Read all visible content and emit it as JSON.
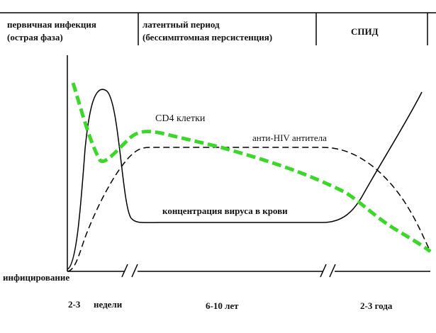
{
  "phases": {
    "primary": {
      "line1": "первичная инфекция",
      "line2": "(острая фаза)"
    },
    "latent": {
      "line1": "латентный период",
      "line2": "(бессимптомная персистенция)"
    },
    "aids": {
      "label": "СПИД"
    }
  },
  "curves": {
    "cd4": {
      "label": "CD4 клетки",
      "color": "#3dd62a"
    },
    "antibodies": {
      "label": "анти-HIV антитела"
    },
    "virus": {
      "label": "концентрация вируса в крови"
    }
  },
  "axis": {
    "origin_label": "инфицирование",
    "periods": [
      "2-3",
      "недели",
      "6-10 лет",
      "2-3 года"
    ]
  }
}
